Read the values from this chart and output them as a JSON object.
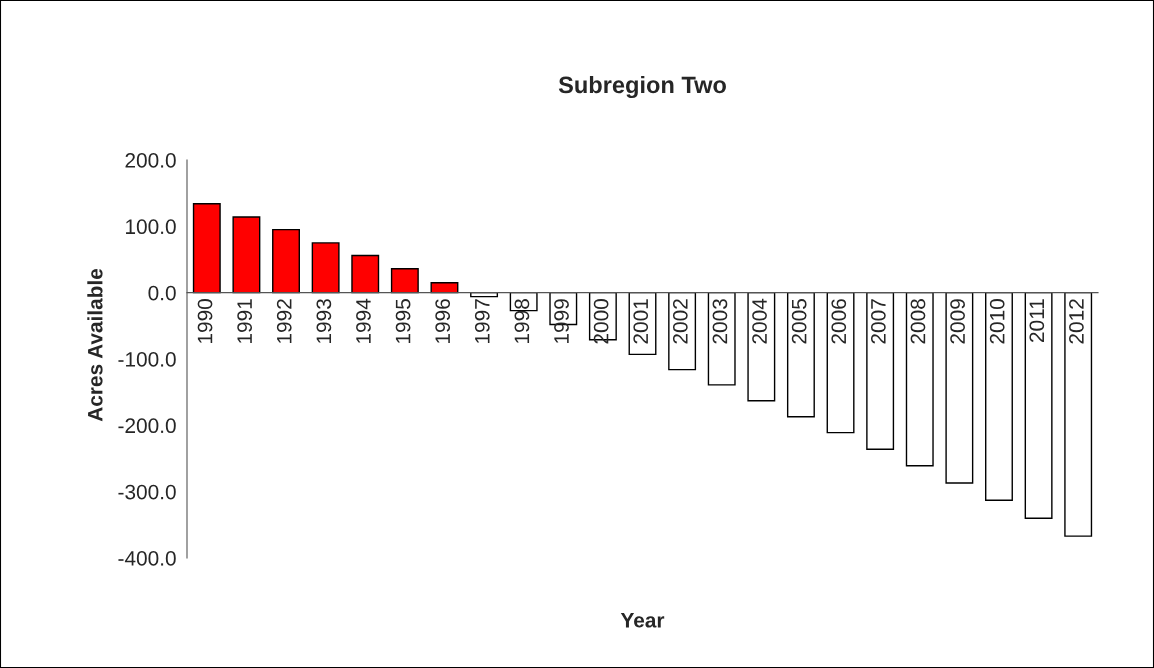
{
  "chart_data": {
    "type": "bar",
    "title": "Subregion Two",
    "xlabel": "Year",
    "ylabel": "Acres Available",
    "categories": [
      "1990",
      "1991",
      "1992",
      "1993",
      "1994",
      "1995",
      "1996",
      "1997",
      "1998",
      "1999",
      "2000",
      "2001",
      "2002",
      "2003",
      "2004",
      "2005",
      "2006",
      "2007",
      "2008",
      "2009",
      "2010",
      "2011",
      "2012"
    ],
    "values": [
      134,
      114,
      95,
      75,
      56,
      36,
      15,
      -6,
      -27,
      -48,
      -71,
      -93,
      -116,
      -139,
      -163,
      -187,
      -211,
      -236,
      -261,
      -287,
      -313,
      -340,
      -367
    ],
    "colors": [
      "#ff0000",
      "#ff0000",
      "#ff0000",
      "#ff0000",
      "#ff0000",
      "#ff0000",
      "#ff0000",
      "#ffffff",
      "#ffffff",
      "#ffffff",
      "#ffffff",
      "#ffffff",
      "#ffffff",
      "#ffffff",
      "#ffffff",
      "#ffffff",
      "#ffffff",
      "#ffffff",
      "#ffffff",
      "#ffffff",
      "#ffffff",
      "#ffffff",
      "#ffffff"
    ],
    "ylim": [
      -400,
      200
    ],
    "yticks": [
      {
        "value": -400,
        "label": "-400.0"
      },
      {
        "value": -300,
        "label": "-300.0"
      },
      {
        "value": -200,
        "label": "-200.0"
      },
      {
        "value": -100,
        "label": "-100.0"
      },
      {
        "value": 0,
        "label": "0.0"
      },
      {
        "value": 100,
        "label": "100.0"
      },
      {
        "value": 200,
        "label": "200.0"
      }
    ],
    "grid": false
  }
}
